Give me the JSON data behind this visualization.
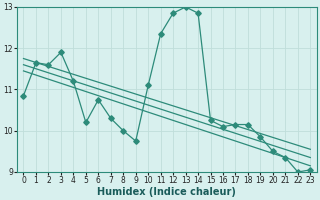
{
  "x": [
    0,
    1,
    2,
    3,
    4,
    5,
    6,
    7,
    8,
    9,
    10,
    11,
    12,
    13,
    14,
    15,
    16,
    17,
    18,
    19,
    20,
    21,
    22,
    23
  ],
  "main_line": [
    10.85,
    11.65,
    11.6,
    11.9,
    11.2,
    10.2,
    10.75,
    10.3,
    10.0,
    9.75,
    11.1,
    12.35,
    12.85,
    13.0,
    12.85,
    10.25,
    10.1,
    10.15,
    10.15,
    9.85,
    9.5,
    9.35,
    9.0,
    9.05
  ],
  "trend_lines": [
    [
      11.75,
      9.55
    ],
    [
      11.6,
      9.35
    ],
    [
      11.45,
      9.15
    ]
  ],
  "line_color": "#2d8b7a",
  "bg_color": "#d8f0ee",
  "grid_color": "#c0deda",
  "xlabel": "Humidex (Indice chaleur)",
  "xlim": [
    -0.5,
    23.5
  ],
  "ylim": [
    9,
    13
  ],
  "yticks": [
    9,
    10,
    11,
    12,
    13
  ],
  "xticks": [
    0,
    1,
    2,
    3,
    4,
    5,
    6,
    7,
    8,
    9,
    10,
    11,
    12,
    13,
    14,
    15,
    16,
    17,
    18,
    19,
    20,
    21,
    22,
    23
  ],
  "marker": "D",
  "markersize": 2.8,
  "linewidth": 0.9,
  "tick_fontsize": 5.5,
  "xlabel_fontsize": 7.0
}
